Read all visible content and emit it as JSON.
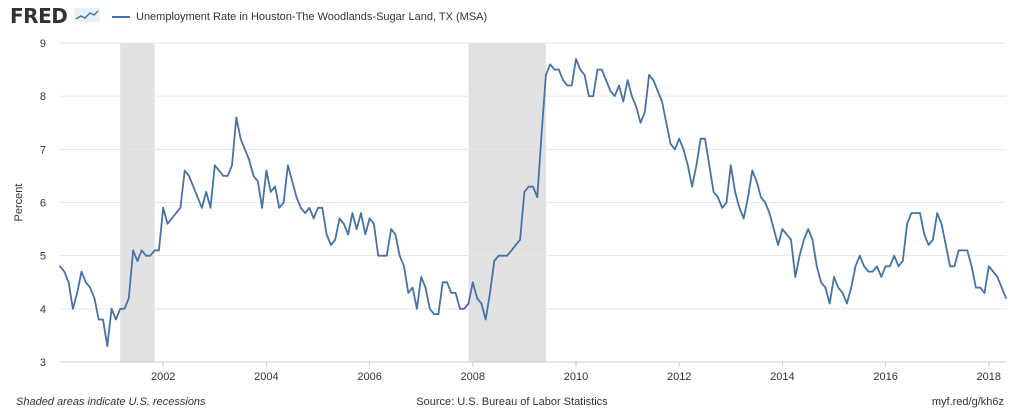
{
  "header": {
    "logo_text": "FRED",
    "logo_icon": "trend-line-icon"
  },
  "chart_data": {
    "type": "line",
    "title": "",
    "legend": "Unemployment Rate in Houston-The Woodlands-Sugar Land, TX (MSA)",
    "ylabel": "Percent",
    "xlabel": "",
    "ylim": [
      3,
      9
    ],
    "xlim": [
      "2000-01",
      "2018-05"
    ],
    "yticks": [
      3,
      4,
      5,
      6,
      7,
      8,
      9
    ],
    "xticks": [
      "2002",
      "2004",
      "2006",
      "2008",
      "2010",
      "2012",
      "2014",
      "2016",
      "2018"
    ],
    "grid": true,
    "color": "#4572a7",
    "recessions": [
      [
        "2001-03",
        "2001-11"
      ],
      [
        "2007-12",
        "2009-06"
      ]
    ],
    "recession_color": "#e1e1e1",
    "series": [
      {
        "name": "Unemployment Rate in Houston-The Woodlands-Sugar Land, TX (MSA)",
        "x": [
          "2000-01",
          "2000-02",
          "2000-03",
          "2000-04",
          "2000-05",
          "2000-06",
          "2000-07",
          "2000-08",
          "2000-09",
          "2000-10",
          "2000-11",
          "2000-12",
          "2001-01",
          "2001-02",
          "2001-03",
          "2001-04",
          "2001-05",
          "2001-06",
          "2001-07",
          "2001-08",
          "2001-09",
          "2001-10",
          "2001-11",
          "2001-12",
          "2002-01",
          "2002-02",
          "2002-03",
          "2002-04",
          "2002-05",
          "2002-06",
          "2002-07",
          "2002-08",
          "2002-09",
          "2002-10",
          "2002-11",
          "2002-12",
          "2003-01",
          "2003-02",
          "2003-03",
          "2003-04",
          "2003-05",
          "2003-06",
          "2003-07",
          "2003-08",
          "2003-09",
          "2003-10",
          "2003-11",
          "2003-12",
          "2004-01",
          "2004-02",
          "2004-03",
          "2004-04",
          "2004-05",
          "2004-06",
          "2004-07",
          "2004-08",
          "2004-09",
          "2004-10",
          "2004-11",
          "2004-12",
          "2005-01",
          "2005-02",
          "2005-03",
          "2005-04",
          "2005-05",
          "2005-06",
          "2005-07",
          "2005-08",
          "2005-09",
          "2005-10",
          "2005-11",
          "2005-12",
          "2006-01",
          "2006-02",
          "2006-03",
          "2006-04",
          "2006-05",
          "2006-06",
          "2006-07",
          "2006-08",
          "2006-09",
          "2006-10",
          "2006-11",
          "2006-12",
          "2007-01",
          "2007-02",
          "2007-03",
          "2007-04",
          "2007-05",
          "2007-06",
          "2007-07",
          "2007-08",
          "2007-09",
          "2007-10",
          "2007-11",
          "2007-12",
          "2008-01",
          "2008-02",
          "2008-03",
          "2008-04",
          "2008-05",
          "2008-06",
          "2008-07",
          "2008-08",
          "2008-09",
          "2008-10",
          "2008-11",
          "2008-12",
          "2009-01",
          "2009-02",
          "2009-03",
          "2009-04",
          "2009-05",
          "2009-06",
          "2009-07",
          "2009-08",
          "2009-09",
          "2009-10",
          "2009-11",
          "2009-12",
          "2010-01",
          "2010-02",
          "2010-03",
          "2010-04",
          "2010-05",
          "2010-06",
          "2010-07",
          "2010-08",
          "2010-09",
          "2010-10",
          "2010-11",
          "2010-12",
          "2011-01",
          "2011-02",
          "2011-03",
          "2011-04",
          "2011-05",
          "2011-06",
          "2011-07",
          "2011-08",
          "2011-09",
          "2011-10",
          "2011-11",
          "2011-12",
          "2012-01",
          "2012-02",
          "2012-03",
          "2012-04",
          "2012-05",
          "2012-06",
          "2012-07",
          "2012-08",
          "2012-09",
          "2012-10",
          "2012-11",
          "2012-12",
          "2013-01",
          "2013-02",
          "2013-03",
          "2013-04",
          "2013-05",
          "2013-06",
          "2013-07",
          "2013-08",
          "2013-09",
          "2013-10",
          "2013-11",
          "2013-12",
          "2014-01",
          "2014-02",
          "2014-03",
          "2014-04",
          "2014-05",
          "2014-06",
          "2014-07",
          "2014-08",
          "2014-09",
          "2014-10",
          "2014-11",
          "2014-12",
          "2015-01",
          "2015-02",
          "2015-03",
          "2015-04",
          "2015-05",
          "2015-06",
          "2015-07",
          "2015-08",
          "2015-09",
          "2015-10",
          "2015-11",
          "2015-12",
          "2016-01",
          "2016-02",
          "2016-03",
          "2016-04",
          "2016-05",
          "2016-06",
          "2016-07",
          "2016-08",
          "2016-09",
          "2016-10",
          "2016-11",
          "2016-12",
          "2017-01",
          "2017-02",
          "2017-03",
          "2017-04",
          "2017-05",
          "2017-06",
          "2017-07",
          "2017-08",
          "2017-09",
          "2017-10",
          "2017-11",
          "2017-12",
          "2018-01",
          "2018-02",
          "2018-03",
          "2018-04",
          "2018-05"
        ],
        "values": [
          4.8,
          4.7,
          4.5,
          4.0,
          4.3,
          4.7,
          4.5,
          4.4,
          4.2,
          3.8,
          3.8,
          3.3,
          4.0,
          3.8,
          4.0,
          4.0,
          4.2,
          5.1,
          4.9,
          5.1,
          5.0,
          5.0,
          5.1,
          5.1,
          5.9,
          5.6,
          5.7,
          5.8,
          5.9,
          6.6,
          6.5,
          6.3,
          6.1,
          5.9,
          6.2,
          5.9,
          6.7,
          6.6,
          6.5,
          6.5,
          6.7,
          7.6,
          7.2,
          7.0,
          6.8,
          6.5,
          6.4,
          5.9,
          6.6,
          6.2,
          6.3,
          5.9,
          6.0,
          6.7,
          6.4,
          6.1,
          5.9,
          5.8,
          5.9,
          5.7,
          5.9,
          5.9,
          5.4,
          5.2,
          5.3,
          5.7,
          5.6,
          5.4,
          5.8,
          5.5,
          5.8,
          5.4,
          5.7,
          5.6,
          5.0,
          5.0,
          5.0,
          5.5,
          5.4,
          5.0,
          4.8,
          4.3,
          4.4,
          4.0,
          4.6,
          4.4,
          4.0,
          3.9,
          3.9,
          4.5,
          4.5,
          4.3,
          4.3,
          4.0,
          4.0,
          4.1,
          4.5,
          4.2,
          4.1,
          3.8,
          4.3,
          4.9,
          5.0,
          5.0,
          5.0,
          5.1,
          5.2,
          5.3,
          6.2,
          6.3,
          6.3,
          6.1,
          7.3,
          8.4,
          8.6,
          8.5,
          8.5,
          8.3,
          8.2,
          8.2,
          8.7,
          8.5,
          8.4,
          8.0,
          8.0,
          8.5,
          8.5,
          8.3,
          8.1,
          8.0,
          8.2,
          7.9,
          8.3,
          8.0,
          7.8,
          7.5,
          7.7,
          8.4,
          8.3,
          8.1,
          7.9,
          7.5,
          7.1,
          7.0,
          7.2,
          7.0,
          6.7,
          6.3,
          6.7,
          7.2,
          7.2,
          6.7,
          6.2,
          6.1,
          5.9,
          6.0,
          6.7,
          6.2,
          5.9,
          5.7,
          6.1,
          6.6,
          6.4,
          6.1,
          6.0,
          5.8,
          5.5,
          5.2,
          5.5,
          5.4,
          5.3,
          4.6,
          5.0,
          5.3,
          5.5,
          5.3,
          4.8,
          4.5,
          4.4,
          4.1,
          4.6,
          4.4,
          4.3,
          4.1,
          4.4,
          4.8,
          5.0,
          4.8,
          4.7,
          4.7,
          4.8,
          4.6,
          4.8,
          4.8,
          5.0,
          4.8,
          4.9,
          5.6,
          5.8,
          5.8,
          5.8,
          5.4,
          5.2,
          5.3,
          5.8,
          5.6,
          5.2,
          4.8,
          4.8,
          5.1,
          5.1,
          5.1,
          4.8,
          4.4,
          4.4,
          4.3,
          4.8,
          4.7,
          4.6,
          4.4,
          4.2
        ]
      }
    ]
  },
  "footer": {
    "note": "Shaded areas indicate U.S. recessions",
    "source": "Source: U.S. Bureau of Labor Statistics",
    "link": "myf.red/g/kh6z"
  }
}
